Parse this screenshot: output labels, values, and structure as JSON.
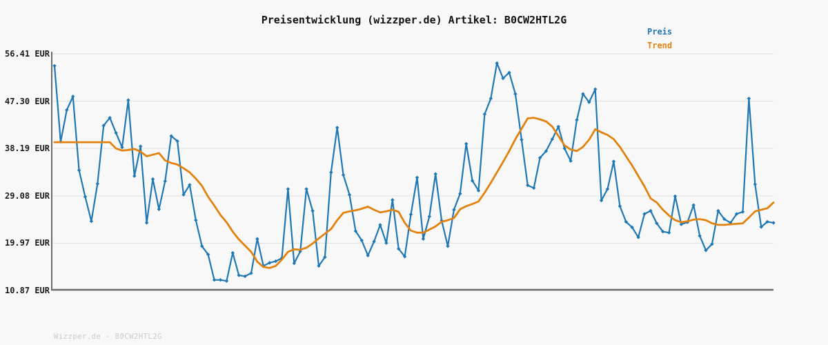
{
  "title": "Preisentwicklung (wizzper.de) Artikel: B0CW2HTL2G",
  "watermark": "Wizzper.de - B0CW2HTL2G",
  "legend": [
    {
      "label": "Preis",
      "color": "#1f77b4"
    },
    {
      "label": "Trend",
      "color": "#e2820e"
    }
  ],
  "y_axis": {
    "ticks": [
      "56.41 EUR",
      "47.30 EUR",
      "38.19 EUR",
      "29.08 EUR",
      "19.97 EUR",
      "10.87 EUR"
    ],
    "values": [
      56.41,
      47.3,
      38.19,
      29.08,
      19.97,
      10.87
    ]
  },
  "colors": {
    "background": "#f8f8f8",
    "grid": "#e4e4e4",
    "axis": "#6b6b6b",
    "price": "#1f77b4",
    "trend": "#e2820e",
    "title_text": "#111111",
    "watermark_text": "#c9c9c9"
  },
  "chart_data": {
    "type": "line",
    "title": "Preisentwicklung (wizzper.de) Artikel: B0CW2HTL2G",
    "xlabel": "",
    "ylabel": "EUR",
    "x_axis_labels_shown": false,
    "grid": true,
    "legend_position": "top-right",
    "ylim": [
      10.87,
      56.41
    ],
    "y_ticks": [
      10.87,
      19.97,
      29.08,
      38.19,
      47.3,
      56.41
    ],
    "series": [
      {
        "name": "Preis",
        "color": "#1f77b4",
        "marker": "diamond",
        "line_width": 2.2,
        "values": [
          54.1,
          39.5,
          45.6,
          48.2,
          34.0,
          28.9,
          24.2,
          31.4,
          42.6,
          44.1,
          41.2,
          38.4,
          47.5,
          32.9,
          38.6,
          23.9,
          32.3,
          26.5,
          31.9,
          40.6,
          39.6,
          29.3,
          31.2,
          24.4,
          19.4,
          17.8,
          12.9,
          12.9,
          12.7,
          18.1,
          13.8,
          13.6,
          14.2,
          20.8,
          15.6,
          16.2,
          16.5,
          17.1,
          30.4,
          16.1,
          18.4,
          30.4,
          26.2,
          15.6,
          17.3,
          33.6,
          42.2,
          33.1,
          29.3,
          22.3,
          20.5,
          17.6,
          20.3,
          23.5,
          20.0,
          28.3,
          18.9,
          17.4,
          25.5,
          32.6,
          20.8,
          25.1,
          33.3,
          24.3,
          19.4,
          26.4,
          29.5,
          39.1,
          32.0,
          30.1,
          44.8,
          47.8,
          54.6,
          51.7,
          52.8,
          48.7,
          39.9,
          31.1,
          30.6,
          36.4,
          37.7,
          40.0,
          42.4,
          38.2,
          35.8,
          43.7,
          48.7,
          47.1,
          49.6,
          28.2,
          30.4,
          35.7,
          27.1,
          24.1,
          23.0,
          21.1,
          25.6,
          26.2,
          23.8,
          22.2,
          22.0,
          29.0,
          23.6,
          24.0,
          27.3,
          21.4,
          18.6,
          19.8,
          26.2,
          24.6,
          23.9,
          25.6,
          26.0,
          47.8,
          31.3,
          23.1,
          24.1,
          23.9
        ]
      },
      {
        "name": "Trend",
        "color": "#e2820e",
        "marker": "none",
        "line_width": 2.8,
        "values": [
          39.4,
          39.4,
          39.4,
          39.4,
          39.4,
          39.4,
          39.4,
          39.4,
          39.4,
          39.4,
          38.2,
          37.8,
          37.9,
          38.1,
          37.6,
          36.7,
          37.0,
          37.3,
          35.9,
          35.4,
          35.1,
          34.4,
          33.6,
          32.4,
          31.0,
          28.9,
          27.2,
          25.4,
          24.0,
          22.2,
          20.7,
          19.5,
          18.3,
          16.4,
          15.4,
          15.2,
          15.6,
          16.8,
          18.3,
          18.8,
          18.7,
          19.1,
          19.9,
          20.9,
          21.8,
          22.7,
          24.4,
          25.8,
          26.1,
          26.3,
          26.6,
          27.0,
          26.4,
          25.9,
          26.1,
          26.4,
          26.0,
          23.9,
          22.4,
          22.0,
          22.0,
          22.6,
          23.2,
          24.1,
          24.4,
          24.8,
          26.5,
          27.1,
          27.5,
          28.0,
          29.7,
          31.6,
          33.6,
          35.6,
          37.7,
          40.0,
          42.0,
          44.0,
          44.1,
          43.8,
          43.4,
          42.4,
          40.6,
          38.8,
          38.0,
          37.7,
          38.5,
          39.9,
          41.9,
          41.3,
          40.8,
          40.0,
          38.5,
          36.7,
          34.9,
          32.9,
          30.9,
          28.6,
          27.8,
          26.4,
          25.3,
          24.4,
          24.0,
          24.2,
          24.5,
          24.6,
          24.4,
          23.8,
          23.5,
          23.5,
          23.6,
          23.7,
          23.8,
          24.9,
          26.1,
          26.4,
          26.7,
          27.8
        ]
      }
    ]
  }
}
